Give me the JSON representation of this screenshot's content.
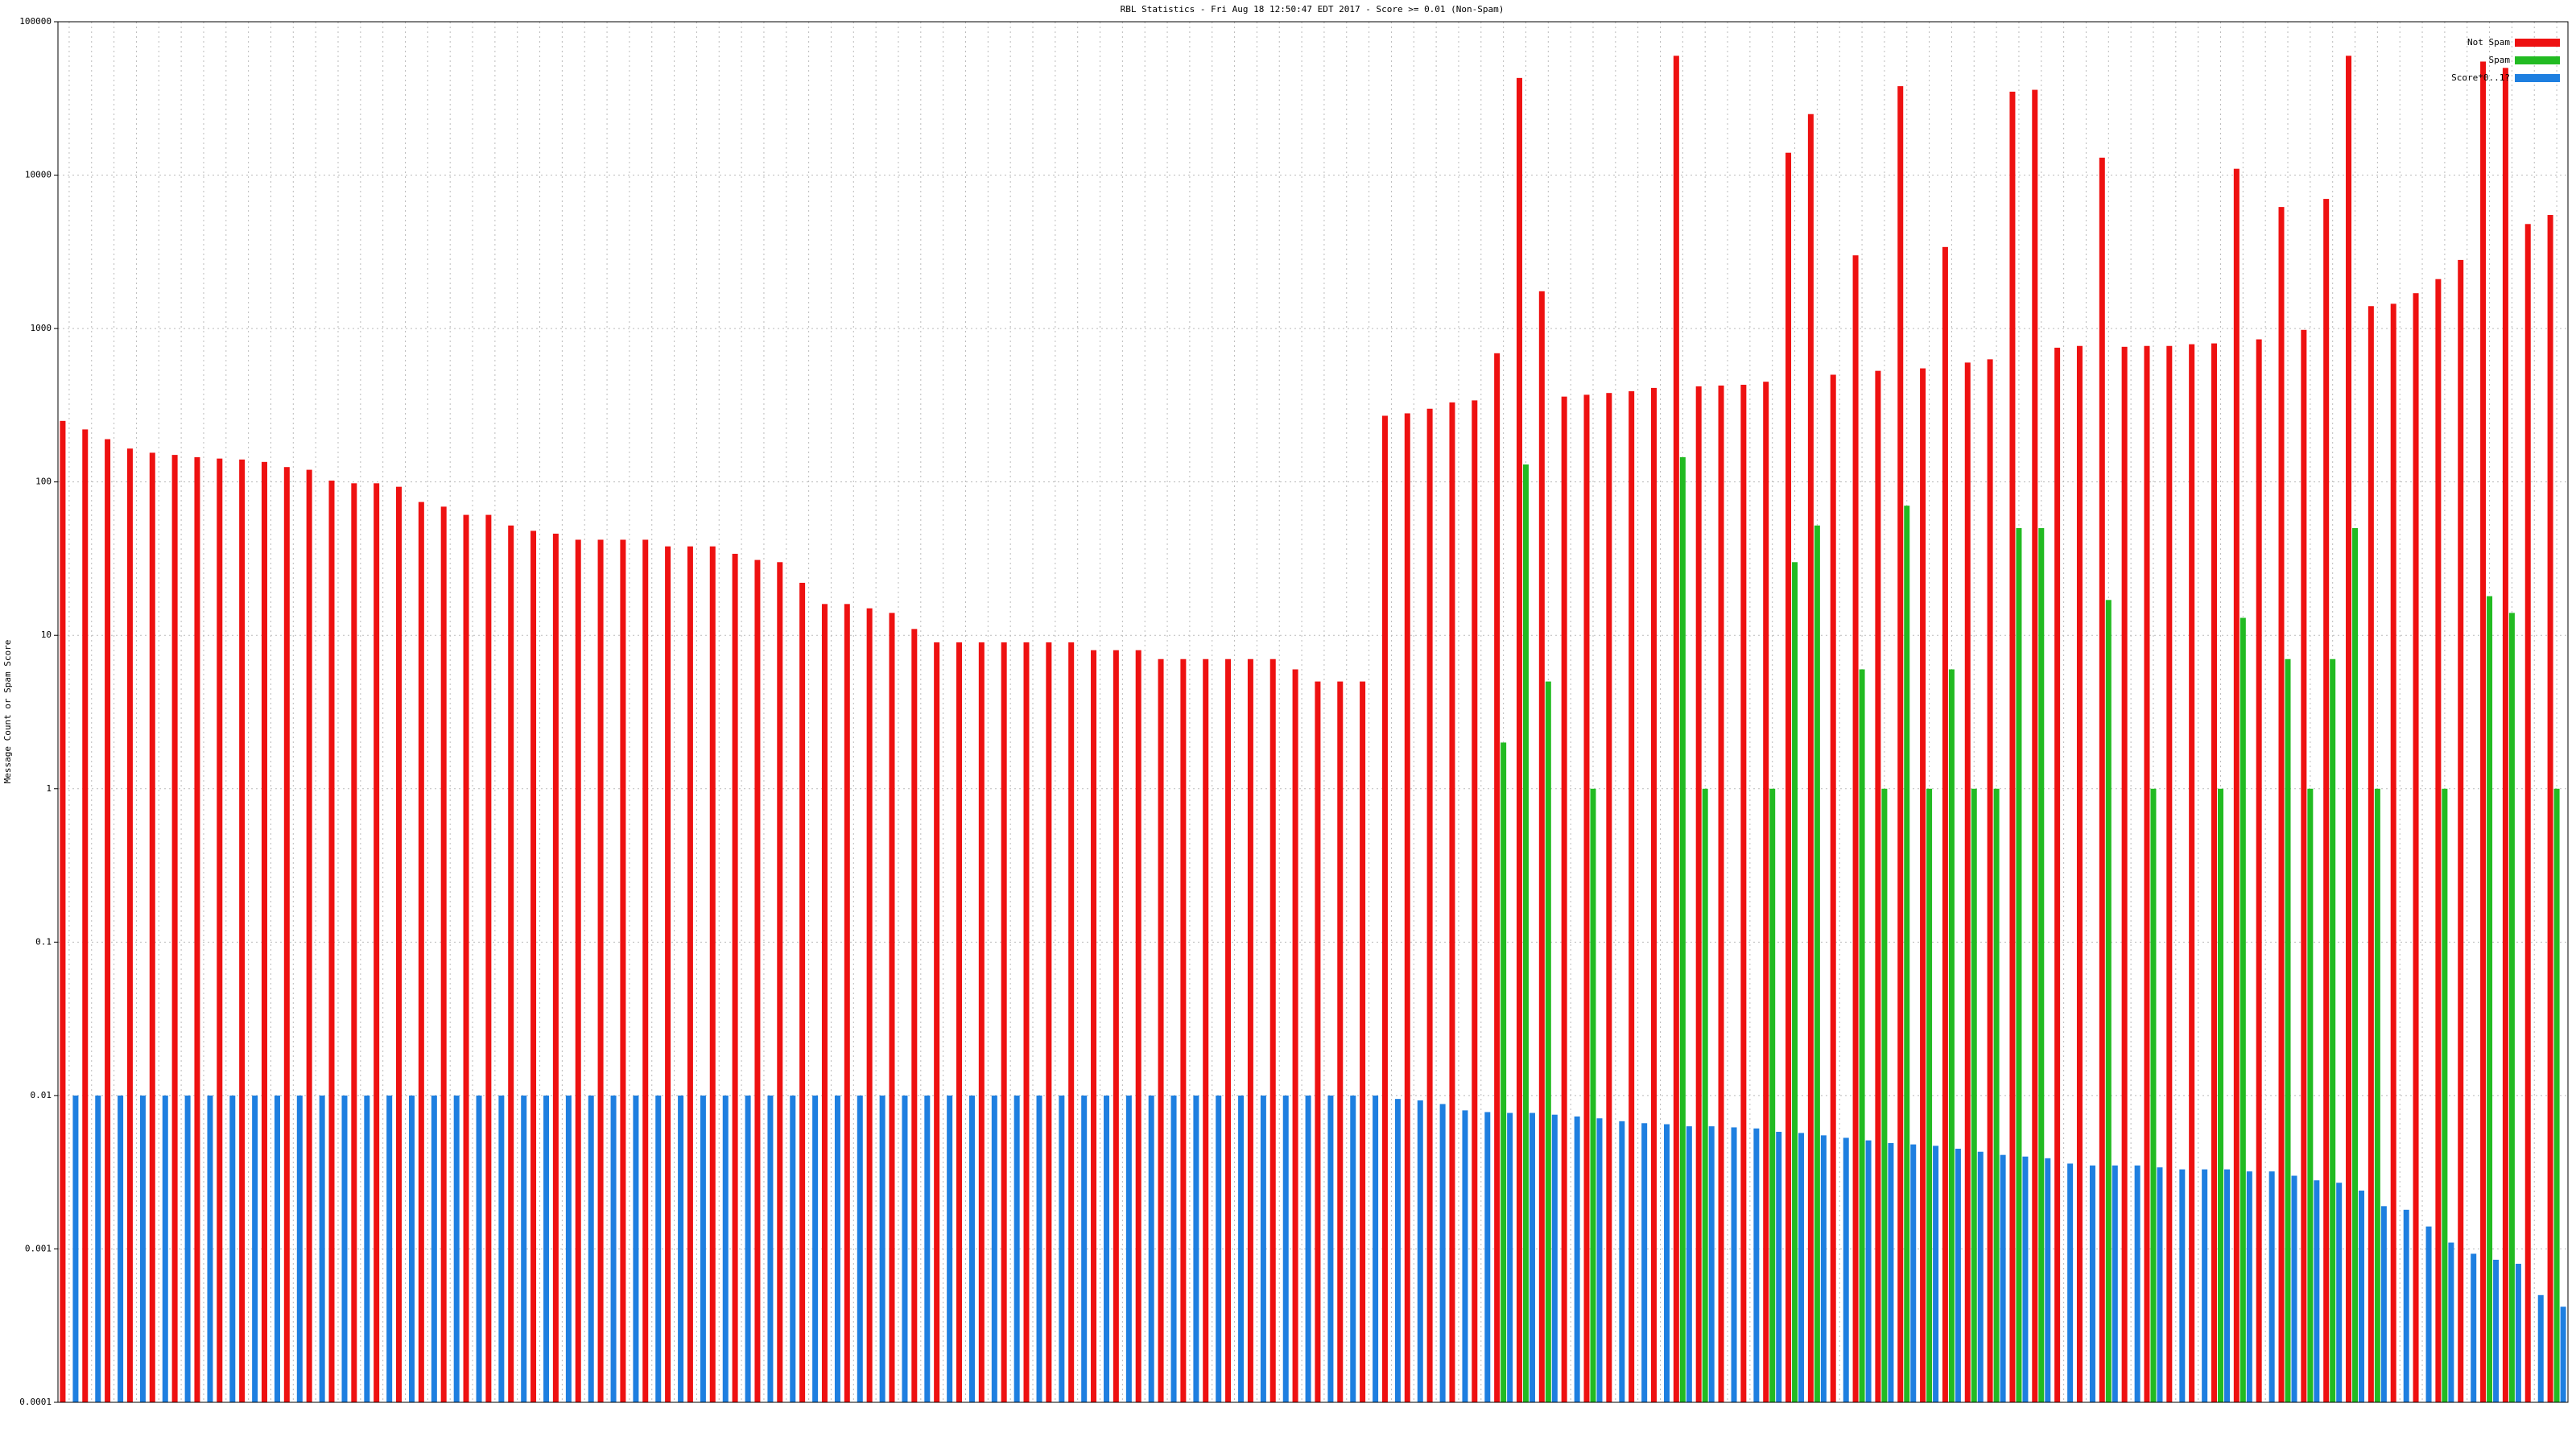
{
  "chart_data": {
    "type": "bar",
    "title": "RBL Statistics - Fri Aug 18 12:50:47 EDT 2017 - Score >= 0.01 (Non-Spam)",
    "y_label": "Message Count or Spam Score",
    "log_scale": true,
    "grid": true,
    "legend": "upper right",
    "ylim": [
      0.0001,
      100000
    ],
    "yticks": [
      0.0001,
      0.001,
      0.01,
      0.1,
      1,
      10,
      100,
      1000,
      10000,
      100000
    ],
    "categories": [
      null,
      null,
      null,
      null,
      null,
      null,
      null,
      null,
      null,
      null,
      null,
      null,
      null,
      null,
      null,
      null,
      null,
      null,
      null,
      null,
      null,
      null,
      null,
      null,
      null,
      null,
      null,
      null,
      null,
      null,
      null,
      null,
      null,
      null,
      null,
      null,
      null,
      null,
      null,
      null,
      null,
      null,
      null,
      null,
      null,
      null,
      null,
      null,
      null,
      null,
      null,
      null,
      null,
      null,
      null,
      null,
      null,
      null,
      null,
      null,
      null,
      null,
      null,
      null,
      null,
      null,
      null,
      null,
      null,
      null,
      null,
      null,
      null,
      null,
      null,
      null,
      null,
      null,
      null,
      null,
      null,
      null,
      null,
      null,
      null,
      null,
      null,
      null,
      null,
      null,
      null,
      null,
      null,
      null,
      null,
      null,
      null,
      null,
      null,
      null,
      null,
      null,
      null,
      null,
      null,
      null,
      null,
      null,
      null,
      null,
      null,
      null
    ],
    "series": [
      {
        "name": "Not Spam",
        "color": "#ee1111",
        "values": [
          250,
          220,
          190,
          165,
          155,
          150,
          145,
          142,
          140,
          135,
          125,
          120,
          102,
          98,
          98,
          93,
          74,
          69,
          61,
          61,
          52,
          48,
          46,
          42,
          42,
          42,
          42,
          38,
          38,
          38,
          34,
          31,
          30,
          22,
          16,
          16,
          15,
          14,
          11,
          9,
          9,
          9,
          9,
          9,
          9,
          9,
          8,
          8,
          8,
          7,
          7,
          7,
          7,
          7,
          7,
          6,
          5,
          5,
          5,
          270,
          280,
          300,
          330,
          340,
          690,
          43000,
          1750,
          360,
          370,
          380,
          390,
          410,
          60000,
          420,
          425,
          430,
          450,
          14000,
          25000,
          500,
          3000,
          530,
          38000,
          550,
          3400,
          600,
          630,
          35000,
          36000,
          750,
          770,
          13000,
          760,
          770,
          770,
          790,
          800,
          11000,
          850,
          6200,
          980,
          7000,
          60000,
          1400,
          1450,
          1700,
          2100,
          2800,
          55000,
          50000,
          4800,
          5500
        ]
      },
      {
        "name": "Spam",
        "color": "#22bb22",
        "values": [
          null,
          null,
          null,
          null,
          null,
          null,
          null,
          null,
          null,
          null,
          null,
          null,
          null,
          null,
          null,
          null,
          null,
          null,
          null,
          null,
          null,
          null,
          null,
          null,
          null,
          null,
          null,
          null,
          null,
          null,
          null,
          null,
          null,
          null,
          null,
          null,
          null,
          null,
          null,
          null,
          null,
          null,
          null,
          null,
          null,
          null,
          null,
          null,
          null,
          null,
          null,
          null,
          null,
          null,
          null,
          null,
          null,
          null,
          null,
          null,
          null,
          null,
          null,
          null,
          2,
          130,
          5,
          null,
          1,
          null,
          null,
          null,
          145,
          1,
          null,
          null,
          1,
          30,
          52,
          null,
          6,
          1,
          70,
          1,
          6,
          1,
          1,
          50,
          50,
          null,
          null,
          17,
          null,
          1,
          null,
          null,
          1,
          13,
          null,
          7,
          1,
          7,
          50,
          1,
          null,
          null,
          1,
          null,
          18,
          14,
          null,
          1
        ]
      },
      {
        "name": "Score*0..1?",
        "color": "#1e7fe0",
        "values": [
          0.01,
          0.01,
          0.01,
          0.01,
          0.01,
          0.01,
          0.01,
          0.01,
          0.01,
          0.01,
          0.01,
          0.01,
          0.01,
          0.01,
          0.01,
          0.01,
          0.01,
          0.01,
          0.01,
          0.01,
          0.01,
          0.01,
          0.01,
          0.01,
          0.01,
          0.01,
          0.01,
          0.01,
          0.01,
          0.01,
          0.01,
          0.01,
          0.01,
          0.01,
          0.01,
          0.01,
          0.01,
          0.01,
          0.01,
          0.01,
          0.01,
          0.01,
          0.01,
          0.01,
          0.01,
          0.01,
          0.01,
          0.01,
          0.01,
          0.01,
          0.01,
          0.01,
          0.01,
          0.01,
          0.01,
          0.01,
          0.01,
          0.01,
          0.01,
          0.0095,
          0.0093,
          0.0088,
          0.008,
          0.0078,
          0.0077,
          0.0077,
          0.0075,
          0.0073,
          0.0071,
          0.0068,
          0.0066,
          0.0065,
          0.0063,
          0.0063,
          0.0062,
          0.0061,
          0.0058,
          0.0057,
          0.0055,
          0.0053,
          0.0051,
          0.0049,
          0.0048,
          0.0047,
          0.0045,
          0.0043,
          0.0041,
          0.004,
          0.0039,
          0.0036,
          0.0035,
          0.0035,
          0.0035,
          0.0034,
          0.0033,
          0.0033,
          0.0033,
          0.0032,
          0.0032,
          0.003,
          0.0028,
          0.0027,
          0.0024,
          0.0019,
          0.0018,
          0.0014,
          0.0011,
          0.00093,
          0.00085,
          0.0008,
          0.0005,
          0.00042
        ]
      }
    ]
  }
}
